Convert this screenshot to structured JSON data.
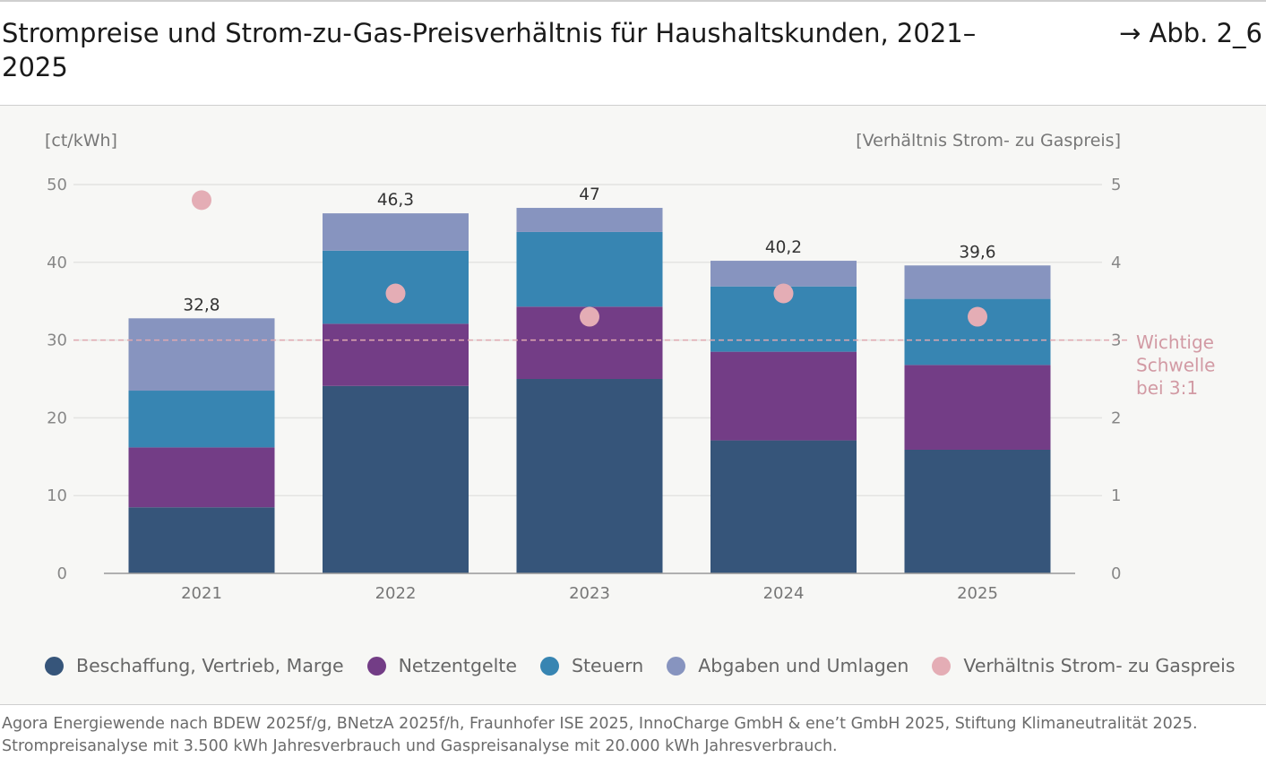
{
  "header": {
    "title": "Strompreise und Strom-zu-Gas-Preisverhältnis für Haushaltskunden, 2021–2025",
    "figure_ref": "→ Abb. 2_6"
  },
  "chart_data": {
    "type": "bar",
    "stacked": true,
    "categories": [
      "2021",
      "2022",
      "2023",
      "2024",
      "2025"
    ],
    "ylabel": "[ct/kWh]",
    "y2label": "[Verhältnis Strom- zu Gaspreis]",
    "ylim": [
      0,
      50
    ],
    "y2lim": [
      0,
      5
    ],
    "yticks": [
      "0",
      "10",
      "20",
      "30",
      "40",
      "50"
    ],
    "y2ticks": [
      "0",
      "1",
      "2",
      "3",
      "4",
      "5"
    ],
    "grid": true,
    "series": [
      {
        "name": "Beschaffung, Vertrieb, Marge",
        "color": "#36557a",
        "values": [
          8.5,
          24.1,
          25.0,
          17.1,
          15.9
        ]
      },
      {
        "name": "Netzentgelte",
        "color": "#733d86",
        "values": [
          7.7,
          8.0,
          9.3,
          11.4,
          10.9
        ]
      },
      {
        "name": "Steuern",
        "color": "#3785b2",
        "values": [
          7.3,
          9.4,
          9.6,
          8.4,
          8.5
        ]
      },
      {
        "name": "Abgaben und Umlagen",
        "color": "#8794bf",
        "values": [
          9.3,
          4.8,
          3.1,
          3.3,
          4.3
        ]
      }
    ],
    "totals": [
      "32,8",
      "46,3",
      "47",
      "40,2",
      "39,6"
    ],
    "ratio_series": {
      "name": "Verhältnis Strom- zu Gaspreis",
      "color": "#e4adb5",
      "axis": "right",
      "values": [
        4.8,
        3.6,
        3.3,
        3.6,
        3.3
      ]
    },
    "threshold": {
      "value": 3,
      "axis": "right",
      "label_lines": [
        "Wichtige",
        "Schwelle",
        "bei 3:1"
      ],
      "color": "#e0a8b0"
    },
    "legend_position": "bottom"
  },
  "footer": {
    "source": "Agora Energiewende nach BDEW 2025f/g, BNetzA 2025f/h, Fraunhofer ISE 2025, InnoCharge GmbH & ene’t GmbH 2025, Stiftung Klimaneutralität 2025. Strompreisanalyse mit 3.500 kWh Jahresverbrauch und Gaspreisanalyse mit 20.000 kWh Jahresverbrauch."
  }
}
